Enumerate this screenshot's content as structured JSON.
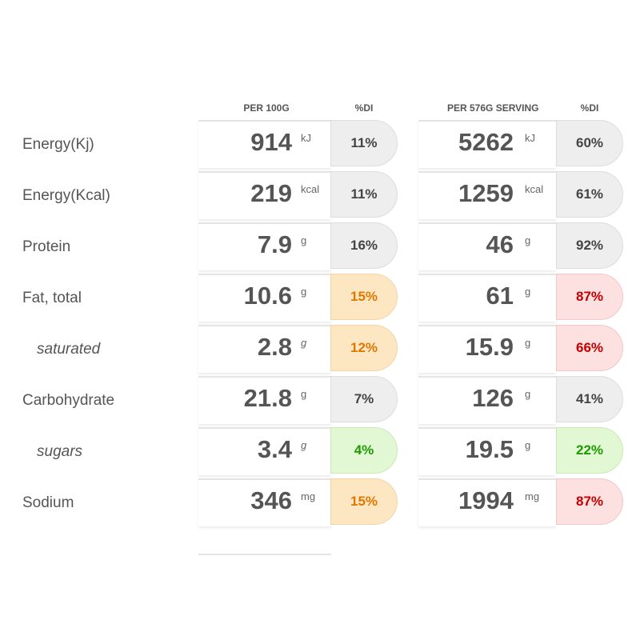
{
  "header": {
    "per100": "PER 100G",
    "di100": "%DI",
    "perServing": "PER 576G SERVING",
    "diServing": "%DI"
  },
  "rows": [
    {
      "label": "Energy(Kj)",
      "sub": false,
      "v1": "914",
      "u1": "kJ",
      "d1": "11%",
      "t1": "grey",
      "v2": "5262",
      "u2": "kJ",
      "d2": "60%",
      "t2": "grey"
    },
    {
      "label": "Energy(Kcal)",
      "sub": false,
      "v1": "219",
      "u1": "kcal",
      "d1": "11%",
      "t1": "grey",
      "v2": "1259",
      "u2": "kcal",
      "d2": "61%",
      "t2": "grey"
    },
    {
      "label": "Protein",
      "sub": false,
      "v1": "7.9",
      "u1": "g",
      "d1": "16%",
      "t1": "grey",
      "v2": "46",
      "u2": "g",
      "d2": "92%",
      "t2": "grey"
    },
    {
      "label": "Fat, total",
      "sub": false,
      "v1": "10.6",
      "u1": "g",
      "d1": "15%",
      "t1": "orange",
      "v2": "61",
      "u2": "g",
      "d2": "87%",
      "t2": "red"
    },
    {
      "label": "saturated",
      "sub": true,
      "v1": "2.8",
      "u1": "g",
      "d1": "12%",
      "t1": "orange",
      "v2": "15.9",
      "u2": "g",
      "d2": "66%",
      "t2": "red"
    },
    {
      "label": "Carbohydrate",
      "sub": false,
      "v1": "21.8",
      "u1": "g",
      "d1": "7%",
      "t1": "grey",
      "v2": "126",
      "u2": "g",
      "d2": "41%",
      "t2": "grey"
    },
    {
      "label": "sugars",
      "sub": true,
      "v1": "3.4",
      "u1": "g",
      "d1": "4%",
      "t1": "green",
      "v2": "19.5",
      "u2": "g",
      "d2": "22%",
      "t2": "green"
    },
    {
      "label": "Sodium",
      "sub": false,
      "v1": "346",
      "u1": "mg",
      "d1": "15%",
      "t1": "orange",
      "v2": "1994",
      "u2": "mg",
      "d2": "87%",
      "t2": "red"
    }
  ]
}
